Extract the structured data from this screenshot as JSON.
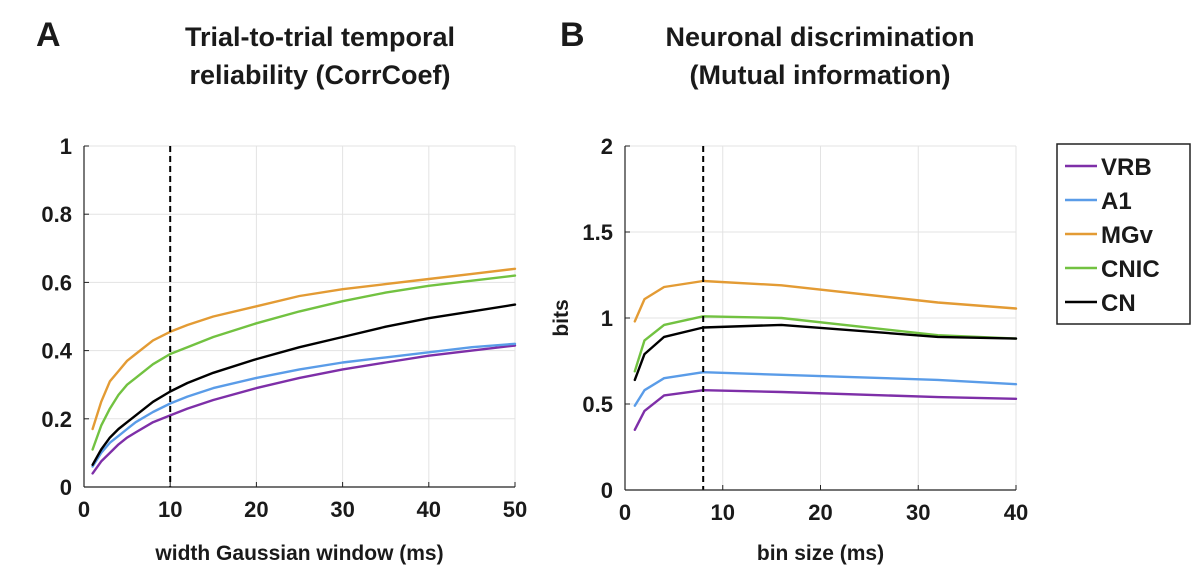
{
  "panels": [
    {
      "letter": "A",
      "title_line1": "Trial-to-trial temporal",
      "title_line2": "reliability (CorrCoef)"
    },
    {
      "letter": "B",
      "title_line1": "Neuronal discrimination",
      "title_line2": "(Mutual information)"
    }
  ],
  "legend": [
    {
      "name": "VRB",
      "color": "#7e2fa8"
    },
    {
      "name": "A1",
      "color": "#5a9ce8"
    },
    {
      "name": "MGv",
      "color": "#e39b34"
    },
    {
      "name": "CNIC",
      "color": "#72c241"
    },
    {
      "name": "CN",
      "color": "#000000"
    }
  ],
  "chart_data": [
    {
      "type": "line",
      "title": "Trial-to-trial temporal reliability (CorrCoef)",
      "xlabel": "width Gaussian window (ms)",
      "ylabel": "",
      "xlim": [
        0,
        50
      ],
      "ylim": [
        0,
        1
      ],
      "xticks": [
        0,
        10,
        20,
        30,
        40,
        50
      ],
      "yticks": [
        0,
        0.2,
        0.4,
        0.6,
        0.8,
        1
      ],
      "xtick_labels": [
        "0",
        "10",
        "20",
        "30",
        "40",
        "50"
      ],
      "ytick_labels": [
        "0",
        "0.2",
        "0.4",
        "0.6",
        "0.8",
        "1"
      ],
      "grid": true,
      "vline": 10,
      "x": [
        1,
        2,
        3,
        4,
        5,
        6,
        8,
        10,
        12,
        15,
        20,
        25,
        30,
        35,
        40,
        45,
        50
      ],
      "series": [
        {
          "name": "VRB",
          "color": "#7e2fa8",
          "values": [
            0.04,
            0.075,
            0.1,
            0.125,
            0.145,
            0.16,
            0.19,
            0.21,
            0.23,
            0.255,
            0.29,
            0.32,
            0.345,
            0.365,
            0.385,
            0.4,
            0.415
          ]
        },
        {
          "name": "A1",
          "color": "#5a9ce8",
          "values": [
            0.06,
            0.1,
            0.13,
            0.15,
            0.17,
            0.19,
            0.22,
            0.245,
            0.265,
            0.29,
            0.32,
            0.345,
            0.365,
            0.38,
            0.395,
            0.41,
            0.42
          ]
        },
        {
          "name": "MGv",
          "color": "#e39b34",
          "values": [
            0.17,
            0.25,
            0.31,
            0.34,
            0.37,
            0.39,
            0.43,
            0.455,
            0.475,
            0.5,
            0.53,
            0.56,
            0.58,
            0.595,
            0.61,
            0.625,
            0.64
          ]
        },
        {
          "name": "CNIC",
          "color": "#72c241",
          "values": [
            0.11,
            0.18,
            0.23,
            0.27,
            0.3,
            0.32,
            0.36,
            0.39,
            0.41,
            0.44,
            0.48,
            0.515,
            0.545,
            0.57,
            0.59,
            0.605,
            0.62
          ]
        },
        {
          "name": "CN",
          "color": "#000000",
          "values": [
            0.065,
            0.11,
            0.145,
            0.17,
            0.19,
            0.21,
            0.25,
            0.28,
            0.305,
            0.335,
            0.375,
            0.41,
            0.44,
            0.47,
            0.495,
            0.515,
            0.535
          ]
        }
      ]
    },
    {
      "type": "line",
      "title": "Neuronal discrimination (Mutual information)",
      "xlabel": "bin size (ms)",
      "ylabel": "bits",
      "xlim": [
        0,
        40
      ],
      "ylim": [
        0,
        2
      ],
      "xticks": [
        0,
        10,
        20,
        30,
        40
      ],
      "yticks": [
        0,
        0.5,
        1,
        1.5,
        2
      ],
      "xtick_labels": [
        "0",
        "10",
        "20",
        "30",
        "40"
      ],
      "ytick_labels": [
        "0",
        "0.5",
        "1",
        "1.5",
        "2"
      ],
      "grid": true,
      "vline": 8,
      "x": [
        1,
        2,
        4,
        8,
        16,
        32,
        40
      ],
      "series": [
        {
          "name": "VRB",
          "color": "#7e2fa8",
          "values": [
            0.35,
            0.46,
            0.55,
            0.58,
            0.57,
            0.54,
            0.53
          ]
        },
        {
          "name": "A1",
          "color": "#5a9ce8",
          "values": [
            0.49,
            0.58,
            0.65,
            0.685,
            0.67,
            0.64,
            0.615
          ]
        },
        {
          "name": "MGv",
          "color": "#e39b34",
          "values": [
            0.98,
            1.11,
            1.18,
            1.215,
            1.19,
            1.09,
            1.055
          ]
        },
        {
          "name": "CNIC",
          "color": "#72c241",
          "values": [
            0.69,
            0.87,
            0.96,
            1.01,
            1.0,
            0.9,
            0.88
          ]
        },
        {
          "name": "CN",
          "color": "#000000",
          "values": [
            0.64,
            0.79,
            0.89,
            0.945,
            0.96,
            0.89,
            0.88
          ]
        }
      ]
    }
  ]
}
